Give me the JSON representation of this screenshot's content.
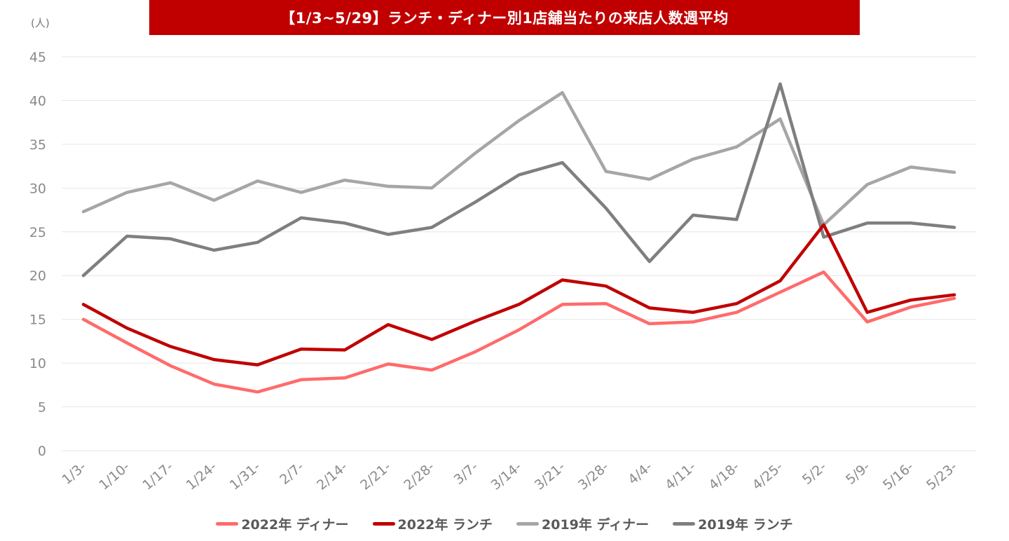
{
  "title": "【1/3~5/29】ランチ・ディナー別1店舗当たりの来店人数週平均",
  "colors": {
    "title_bg": "#c00000",
    "grid": "#e6e6e6",
    "tick": "#8a8a8a"
  },
  "chart_data": {
    "type": "line",
    "title": "【1/3~5/29】ランチ・ディナー別1店舗当たりの来店人数週平均",
    "ylabel": "(人)",
    "xlabel": "",
    "ylim": [
      0,
      45
    ],
    "yticks": [
      0,
      5,
      10,
      15,
      20,
      25,
      30,
      35,
      40,
      45
    ],
    "grid": true,
    "legend_position": "bottom",
    "categories": [
      "1/3-",
      "1/10-",
      "1/17-",
      "1/24-",
      "1/31-",
      "2/7-",
      "2/14-",
      "2/21-",
      "2/28-",
      "3/7-",
      "3/14-",
      "3/21-",
      "3/28-",
      "4/4-",
      "4/11-",
      "4/18-",
      "4/25-",
      "5/2-",
      "5/9-",
      "5/16-",
      "5/23-"
    ],
    "series": [
      {
        "name": "2022年 ディナー",
        "color": "#ff6b6b",
        "values": [
          15.0,
          12.3,
          9.7,
          7.6,
          6.7,
          8.1,
          8.3,
          9.9,
          9.2,
          11.3,
          13.8,
          16.7,
          16.8,
          14.5,
          14.7,
          15.8,
          18.1,
          20.4,
          14.7,
          16.4,
          17.4
        ]
      },
      {
        "name": "2022年 ランチ",
        "color": "#c00000",
        "values": [
          16.7,
          14.0,
          11.9,
          10.4,
          9.8,
          11.6,
          11.5,
          14.4,
          12.7,
          14.8,
          16.7,
          19.5,
          18.8,
          16.3,
          15.8,
          16.8,
          19.4,
          25.8,
          15.8,
          17.2,
          17.8
        ]
      },
      {
        "name": "2019年 ディナー",
        "color": "#a6a6a6",
        "values": [
          27.3,
          29.5,
          30.6,
          28.6,
          30.8,
          29.5,
          30.9,
          30.2,
          30.0,
          34.0,
          37.7,
          40.9,
          31.9,
          31.0,
          33.3,
          34.7,
          37.9,
          25.8,
          30.4,
          32.4,
          31.8
        ]
      },
      {
        "name": "2019年 ランチ",
        "color": "#7f7f7f",
        "values": [
          20.0,
          24.5,
          24.2,
          22.9,
          23.8,
          26.6,
          26.0,
          24.7,
          25.5,
          28.4,
          31.5,
          32.9,
          27.7,
          21.6,
          26.9,
          26.4,
          41.9,
          24.4,
          26.0,
          26.0,
          25.5
        ]
      }
    ]
  }
}
